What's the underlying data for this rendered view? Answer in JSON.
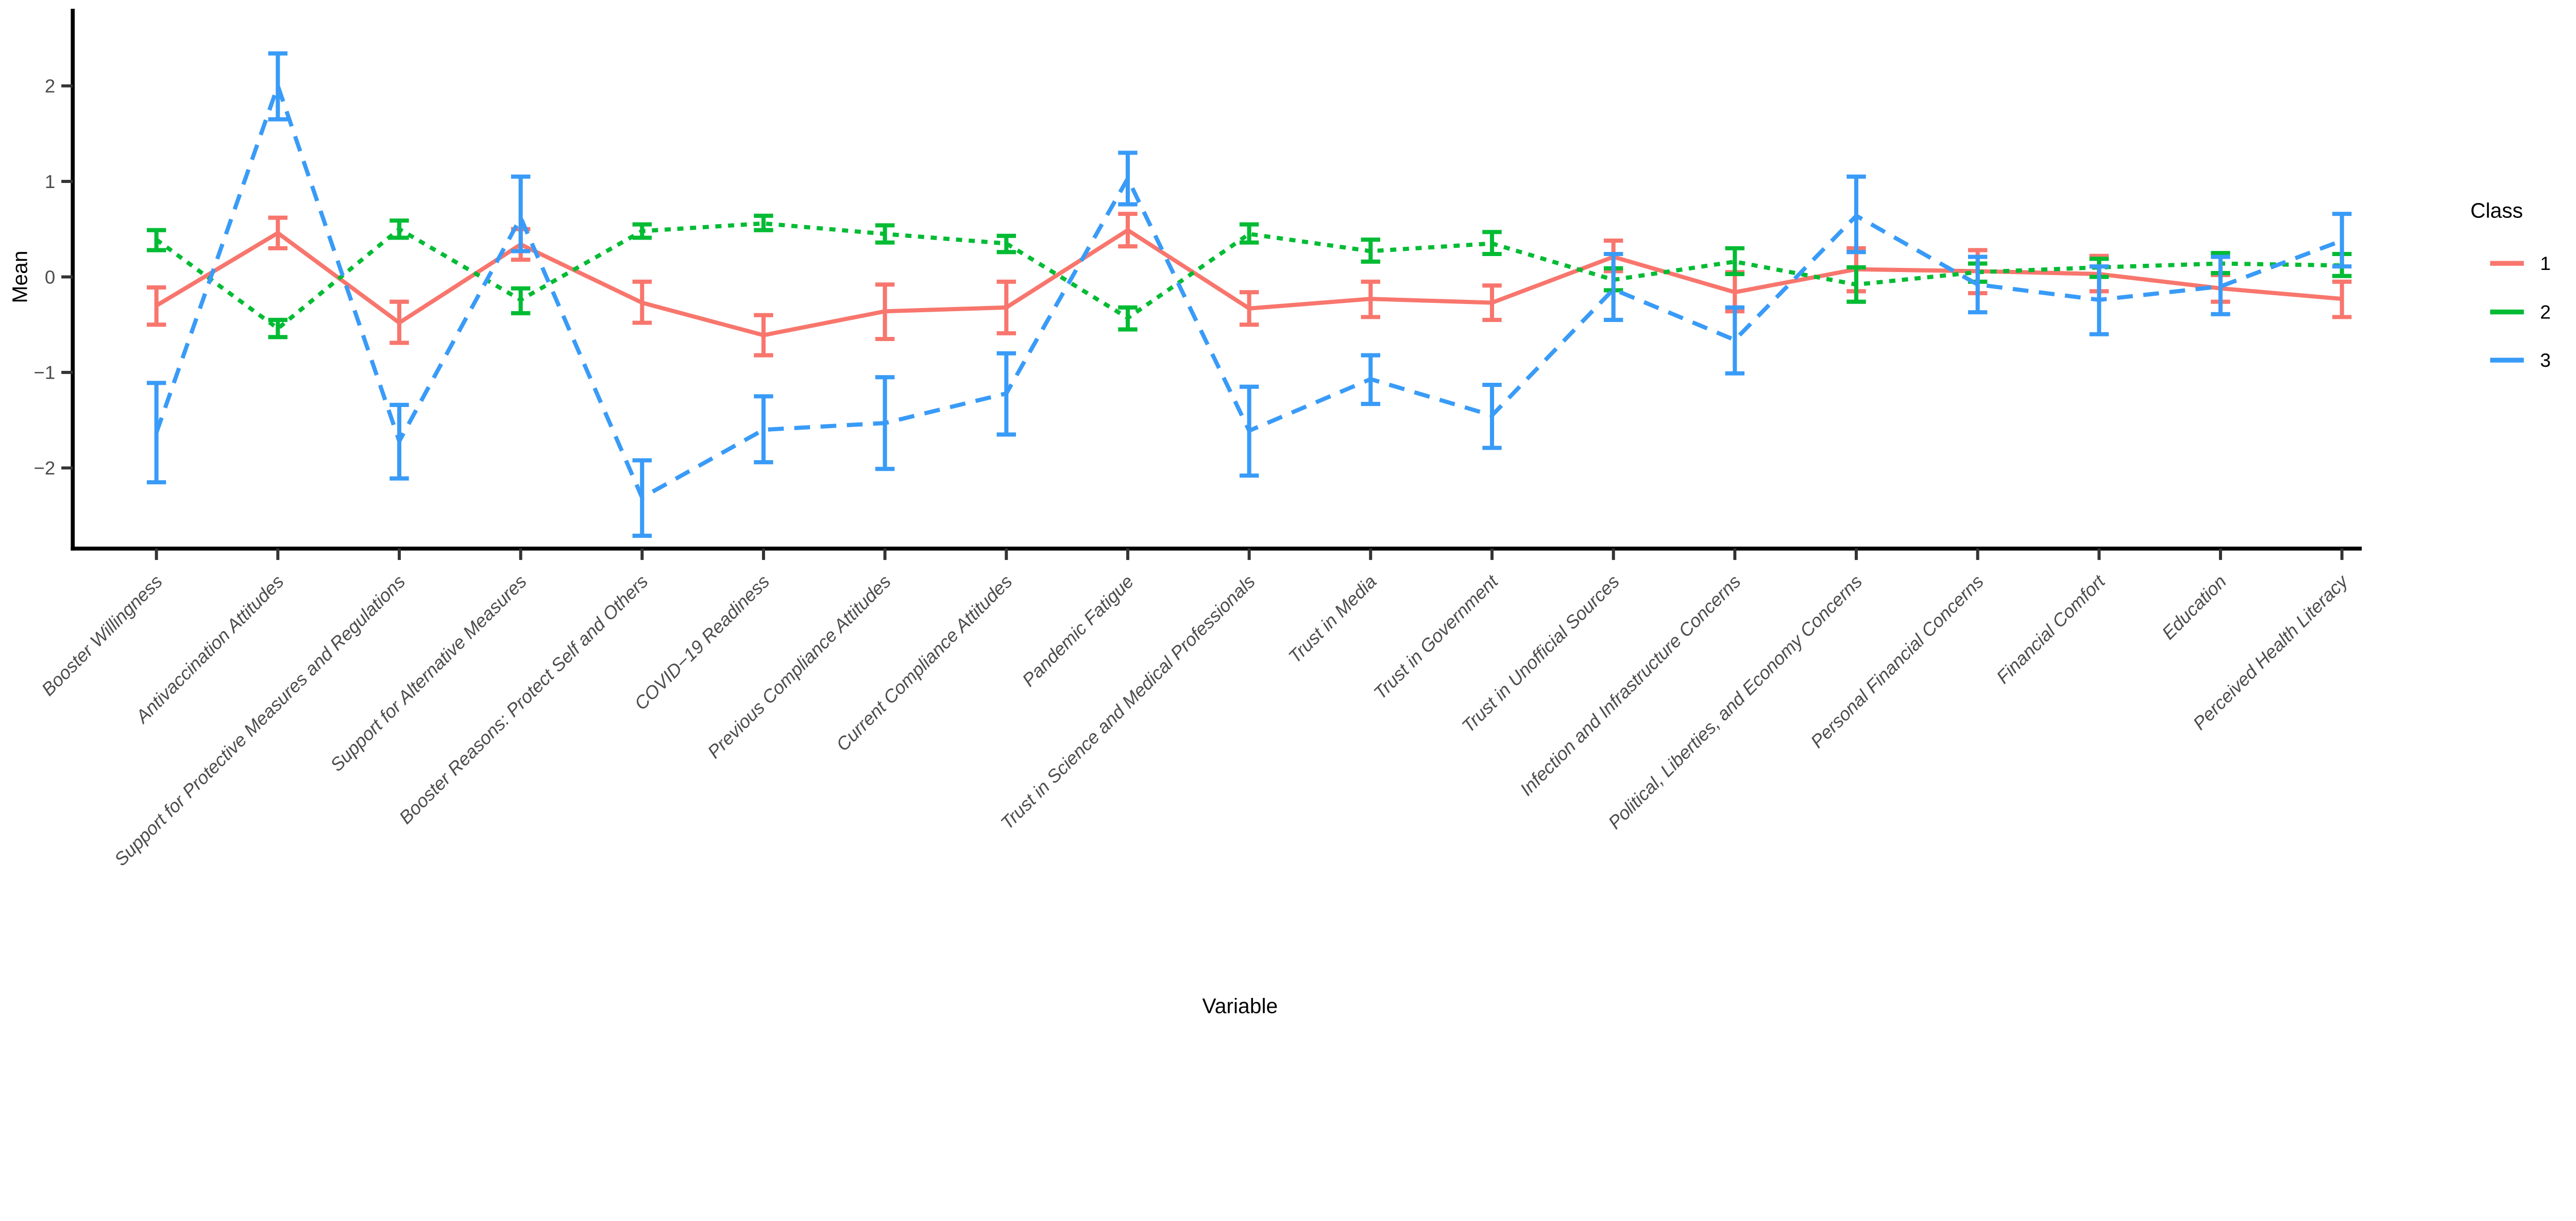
{
  "chart_data": {
    "type": "line",
    "title": "",
    "xlabel": "Variable",
    "ylabel": "Mean",
    "legend_title": "Class",
    "legend_position": "right",
    "grid": false,
    "ylim": [
      -2.85,
      2.75
    ],
    "yticks": [
      2,
      1,
      0,
      -1,
      -2
    ],
    "ytick_labels": [
      "2",
      "1",
      "0",
      "−1",
      "−2"
    ],
    "categories": [
      "Booster Willingness",
      "Antivaccination Attitudes",
      "Support for Protective Measures and Regulations",
      "Support for Alternative Measures",
      "Booster Reasons: Protect Self and Others",
      "COVID−19 Readiness",
      "Previous Compliance Attitudes",
      "Current Compliance Attitudes",
      "Pandemic Fatigue",
      "Trust in Science and Medical Professionals",
      "Trust in Media",
      "Trust in Government",
      "Trust in Unofficial Sources",
      "Infection and Infrastructure Concerns",
      "Political, Liberties, and Economy Concerns",
      "Personal Financial Concerns",
      "Financial Comfort",
      "Education",
      "Perceived Health Literacy"
    ],
    "series": [
      {
        "name": "1",
        "color": "#F8766D",
        "linetype": "solid",
        "means": [
          -0.3,
          0.46,
          -0.48,
          0.34,
          -0.27,
          -0.61,
          -0.36,
          -0.32,
          0.49,
          -0.33,
          -0.23,
          -0.27,
          0.21,
          -0.16,
          0.08,
          0.06,
          0.03,
          -0.12,
          -0.23
        ],
        "ci_lower": [
          -0.5,
          0.3,
          -0.69,
          0.18,
          -0.48,
          -0.82,
          -0.65,
          -0.59,
          0.32,
          -0.5,
          -0.42,
          -0.45,
          0.06,
          -0.36,
          -0.15,
          -0.17,
          -0.15,
          -0.26,
          -0.42
        ],
        "ci_upper": [
          -0.11,
          0.62,
          -0.26,
          0.5,
          -0.05,
          -0.4,
          -0.08,
          -0.05,
          0.66,
          -0.16,
          -0.05,
          -0.09,
          0.38,
          0.05,
          0.3,
          0.28,
          0.22,
          0.02,
          -0.05
        ]
      },
      {
        "name": "2",
        "color": "#00BB33",
        "linetype": "dotted",
        "means": [
          0.39,
          -0.54,
          0.5,
          -0.24,
          0.48,
          0.56,
          0.45,
          0.35,
          -0.43,
          0.45,
          0.27,
          0.35,
          -0.03,
          0.16,
          -0.08,
          0.05,
          0.1,
          0.14,
          0.12
        ],
        "ci_lower": [
          0.28,
          -0.63,
          0.41,
          -0.38,
          0.41,
          0.49,
          0.36,
          0.26,
          -0.55,
          0.36,
          0.16,
          0.24,
          -0.14,
          0.03,
          -0.26,
          -0.05,
          0.0,
          0.04,
          0.01
        ],
        "ci_upper": [
          0.49,
          -0.45,
          0.59,
          -0.12,
          0.55,
          0.64,
          0.54,
          0.43,
          -0.32,
          0.55,
          0.39,
          0.47,
          0.09,
          0.3,
          0.1,
          0.14,
          0.19,
          0.25,
          0.24
        ]
      },
      {
        "name": "3",
        "color": "#399BF8",
        "linetype": "dashed",
        "means": [
          -1.63,
          2.0,
          -1.72,
          0.62,
          -2.31,
          -1.6,
          -1.53,
          -1.22,
          1.03,
          -1.61,
          -1.07,
          -1.45,
          -0.13,
          -0.66,
          0.64,
          -0.08,
          -0.24,
          -0.1,
          0.38
        ],
        "ci_lower": [
          -2.15,
          1.65,
          -2.11,
          0.27,
          -2.71,
          -1.94,
          -2.01,
          -1.65,
          0.76,
          -2.08,
          -1.33,
          -1.79,
          -0.45,
          -1.01,
          0.26,
          -0.37,
          -0.6,
          -0.39,
          0.11
        ],
        "ci_upper": [
          -1.11,
          2.34,
          -1.34,
          1.05,
          -1.92,
          -1.25,
          -1.05,
          -0.8,
          1.3,
          -1.15,
          -0.82,
          -1.13,
          0.24,
          -0.32,
          1.05,
          0.21,
          0.11,
          0.21,
          0.66
        ]
      }
    ],
    "style": {
      "background": "#FFFFFF",
      "axis_color": "#000000",
      "tick_color": "#333333",
      "tick_label_color": "#4D4D4D",
      "error_bar_cap": true
    }
  }
}
